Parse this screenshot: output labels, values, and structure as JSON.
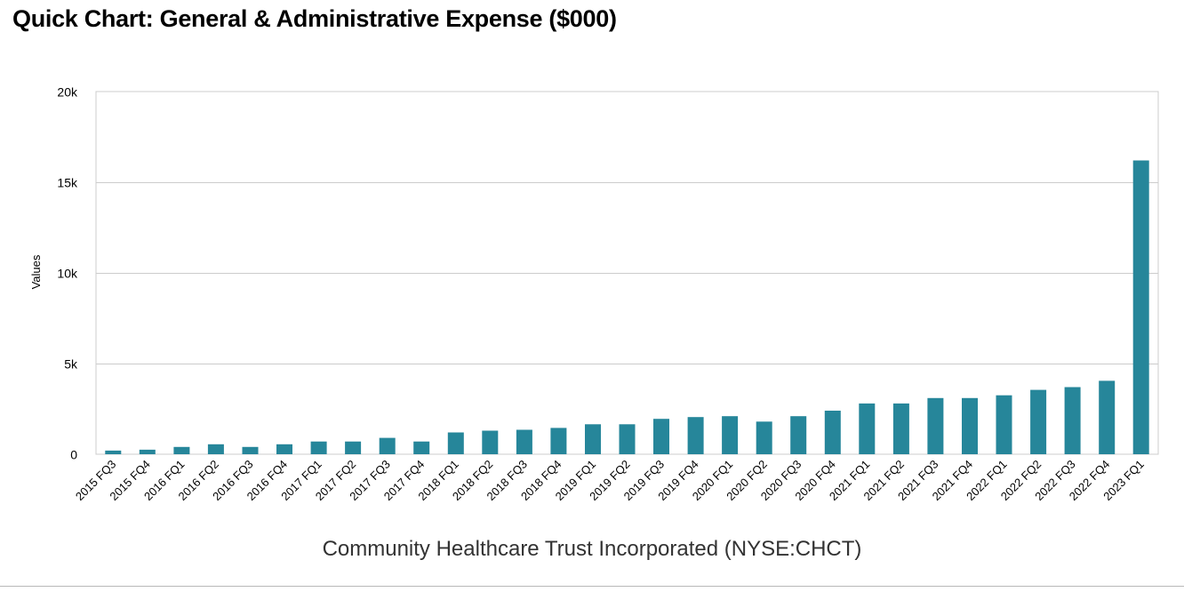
{
  "page": {
    "title": "Quick Chart: General & Administrative Expense ($000)"
  },
  "chart_data": {
    "type": "bar",
    "title": "Quick Chart: General & Administrative Expense ($000)",
    "xlabel": "Community Healthcare Trust Incorporated (NYSE:CHCT)",
    "ylabel": "Values",
    "ylim": [
      0,
      20000
    ],
    "yticks": [
      0,
      5000,
      10000,
      15000,
      20000
    ],
    "ytick_labels": [
      "0",
      "5k",
      "10k",
      "15k",
      "20k"
    ],
    "grid": true,
    "bar_color": "#26869a",
    "categories": [
      "2015 FQ3",
      "2015 FQ4",
      "2016 FQ1",
      "2016 FQ2",
      "2016 FQ3",
      "2016 FQ4",
      "2017 FQ1",
      "2017 FQ2",
      "2017 FQ3",
      "2017 FQ4",
      "2018 FQ1",
      "2018 FQ2",
      "2018 FQ3",
      "2018 FQ4",
      "2019 FQ1",
      "2019 FQ2",
      "2019 FQ3",
      "2019 FQ4",
      "2020 FQ1",
      "2020 FQ2",
      "2020 FQ3",
      "2020 FQ4",
      "2021 FQ1",
      "2021 FQ2",
      "2021 FQ3",
      "2021 FQ4",
      "2022 FQ1",
      "2022 FQ2",
      "2022 FQ3",
      "2022 FQ4",
      "2023 FQ1"
    ],
    "values": [
      200,
      250,
      400,
      550,
      400,
      550,
      700,
      700,
      900,
      700,
      1200,
      1300,
      1350,
      1450,
      1650,
      1650,
      1950,
      2050,
      2100,
      1800,
      2100,
      2400,
      2800,
      2800,
      3100,
      3100,
      3250,
      3550,
      3700,
      4050,
      16200
    ]
  }
}
